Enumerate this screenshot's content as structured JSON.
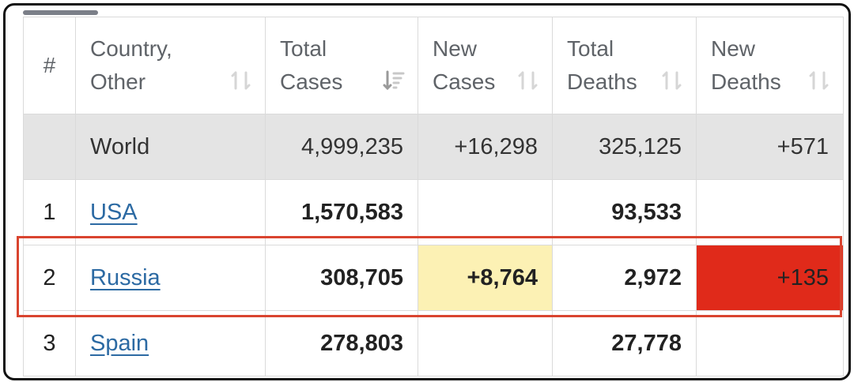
{
  "table": {
    "columns": [
      {
        "line1": "#",
        "line2": ""
      },
      {
        "line1": "Country,",
        "line2": "Other"
      },
      {
        "line1": "Total",
        "line2": "Cases"
      },
      {
        "line1": "New",
        "line2": "Cases"
      },
      {
        "line1": "Total",
        "line2": "Deaths"
      },
      {
        "line1": "New",
        "line2": "Deaths"
      }
    ],
    "world": {
      "index": "",
      "country": "World",
      "total_cases": "4,999,235",
      "new_cases": "+16,298",
      "total_deaths": "325,125",
      "new_deaths": "+571"
    },
    "rows": [
      {
        "index": "1",
        "country": "USA",
        "total_cases": "1,570,583",
        "new_cases": "",
        "total_deaths": "93,533",
        "new_deaths": ""
      },
      {
        "index": "2",
        "country": "Russia",
        "total_cases": "308,705",
        "new_cases": "+8,764",
        "total_deaths": "2,972",
        "new_deaths": "+135"
      },
      {
        "index": "3",
        "country": "Spain",
        "total_cases": "278,803",
        "new_cases": "",
        "total_deaths": "27,778",
        "new_deaths": ""
      }
    ],
    "highlighted_row_index": "2",
    "colors": {
      "new_cases_highlight": "#fcf1b4",
      "new_deaths_highlight": "#e02a1a",
      "row_outline": "#d9442f",
      "link": "#2c6aa3",
      "world_row_bg": "#e4e4e4"
    },
    "sort_icons": [
      "sort-icon",
      "sort-icon",
      "sort-active-icon",
      "sort-icon",
      "sort-icon",
      "sort-icon"
    ]
  }
}
